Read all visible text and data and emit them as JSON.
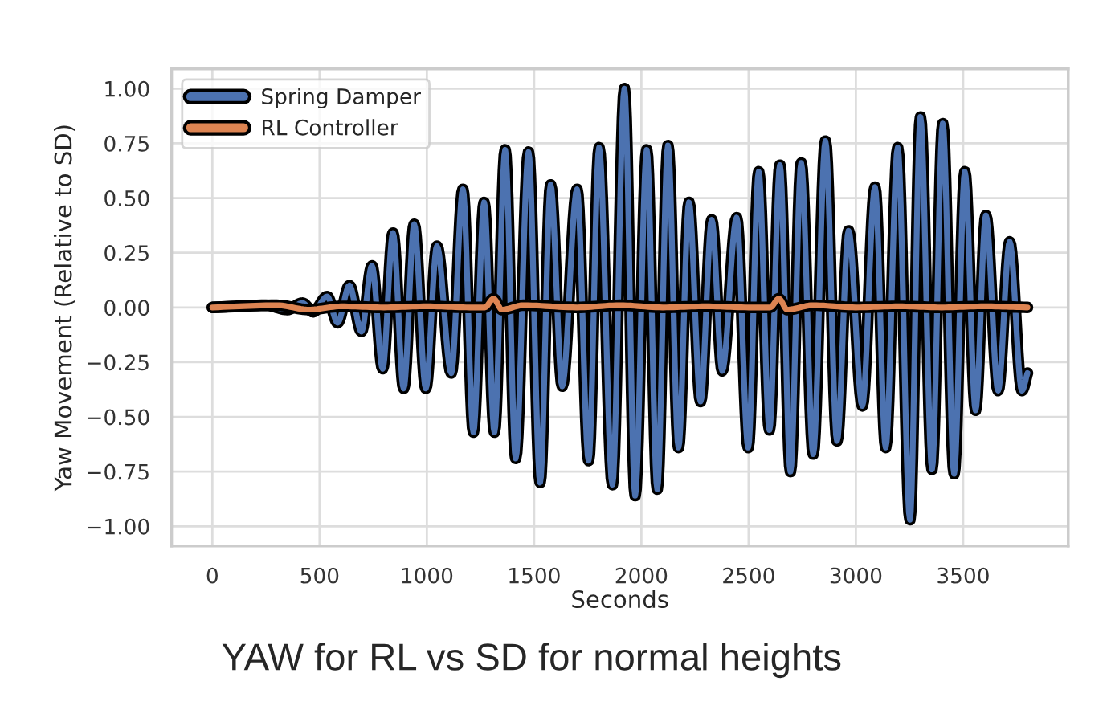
{
  "chart_data": {
    "type": "line",
    "xlabel": "Seconds",
    "ylabel": "Yaw Movement (Relative to SD)",
    "annotations": [
      "YAW for RL vs SD for normal heights"
    ],
    "xlim": [
      -190,
      3990
    ],
    "ylim": [
      -1.09,
      1.09
    ],
    "xticks": [
      0,
      500,
      1000,
      1500,
      2000,
      2500,
      3000,
      3500
    ],
    "yticks": [
      {
        "value": -1,
        "label": "−1.00"
      },
      {
        "value": -0.75,
        "label": "−0.75"
      },
      {
        "value": -0.5,
        "label": "−0.50"
      },
      {
        "value": -0.25,
        "label": "−0.25"
      },
      {
        "value": 0,
        "label": "0.00"
      },
      {
        "value": 0.25,
        "label": "0.25"
      },
      {
        "value": 0.5,
        "label": "0.50"
      },
      {
        "value": 0.75,
        "label": "0.75"
      },
      {
        "value": 1,
        "label": "1.00"
      }
    ],
    "grid": true,
    "legend": "top left",
    "marker": "none",
    "line_style": "solid",
    "series": [
      {
        "name": "Spring Damper",
        "color": "#4c72b0",
        "x": [
          0,
          250,
          350,
          420,
          470,
          535,
          584,
          639,
          695,
          744,
          794,
          842,
          892,
          941,
          995,
          1047,
          1114,
          1168,
          1217,
          1267,
          1315,
          1365,
          1414,
          1474,
          1528,
          1577,
          1631,
          1700,
          1754,
          1803,
          1865,
          1921,
          1971,
          2025,
          2074,
          2124,
          2173,
          2222,
          2276,
          2328,
          2377,
          2444,
          2498,
          2547,
          2597,
          2646,
          2695,
          2745,
          2801,
          2858,
          2912,
          2966,
          3030,
          3089,
          3139,
          3195,
          3252,
          3301,
          3355,
          3405,
          3458,
          3508,
          3558,
          3606,
          3663,
          3717,
          3774,
          3800
        ],
        "values": [
          0,
          0.01,
          -0.01,
          0.02,
          -0.02,
          0.05,
          -0.07,
          0.1,
          -0.11,
          0.19,
          -0.28,
          0.34,
          -0.37,
          0.38,
          -0.37,
          0.28,
          -0.3,
          0.54,
          -0.57,
          0.48,
          -0.57,
          0.72,
          -0.69,
          0.71,
          -0.8,
          0.56,
          -0.36,
          0.54,
          -0.7,
          0.73,
          -0.81,
          1.0,
          -0.86,
          0.72,
          -0.83,
          0.74,
          -0.64,
          0.48,
          -0.43,
          0.4,
          -0.29,
          0.41,
          -0.64,
          0.62,
          -0.56,
          0.65,
          -0.75,
          0.66,
          -0.67,
          0.76,
          -0.61,
          0.35,
          -0.45,
          0.55,
          -0.64,
          0.73,
          -0.97,
          0.87,
          -0.74,
          0.84,
          -0.76,
          0.62,
          -0.47,
          0.42,
          -0.38,
          0.3,
          -0.38,
          -0.3
        ]
      },
      {
        "name": "RL Controller",
        "color": "#dd8452",
        "x": [
          0,
          300,
          450,
          600,
          800,
          1000,
          1200,
          1270,
          1311,
          1350,
          1450,
          1700,
          1900,
          2100,
          2300,
          2500,
          2600,
          2641,
          2680,
          2800,
          3000,
          3200,
          3400,
          3600,
          3800
        ],
        "values": [
          0,
          0.01,
          -0.01,
          0.005,
          0,
          0.005,
          0,
          0,
          0.04,
          -0.01,
          0.01,
          0,
          0.01,
          0,
          0.005,
          0,
          0,
          0.04,
          -0.01,
          0.01,
          0,
          0.005,
          0,
          0.005,
          0
        ]
      }
    ]
  }
}
